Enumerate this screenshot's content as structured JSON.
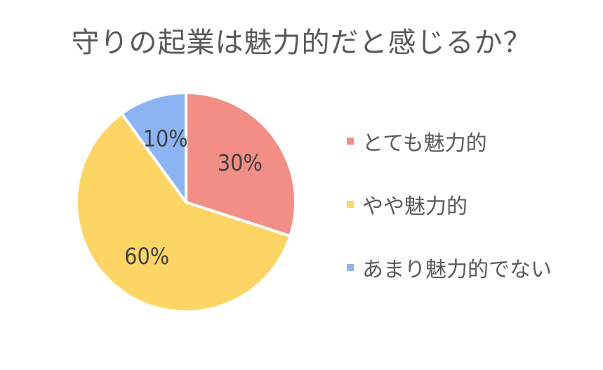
{
  "chart_data": {
    "type": "pie",
    "title": "守りの起業は魅力的だと感じるか？",
    "categories": [
      "とても魅力的",
      "やや魅力的",
      "あまり魅力的でない"
    ],
    "values": [
      30,
      60,
      10
    ],
    "value_labels": [
      "30%",
      "60%",
      "10%"
    ],
    "colors": [
      "#F28E86",
      "#FDD565",
      "#8DB4F2"
    ],
    "start_angle_deg": 0,
    "direction": "clockwise",
    "legend_position": "right"
  }
}
